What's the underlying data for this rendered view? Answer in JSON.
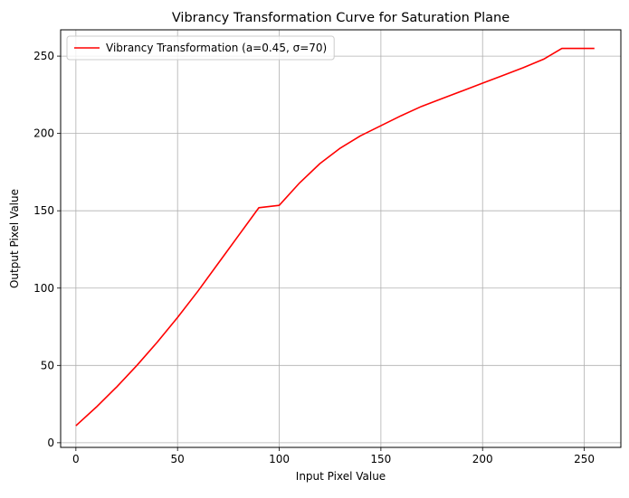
{
  "chart_data": {
    "type": "line",
    "title": "Vibrancy Transformation Curve for Saturation Plane",
    "xlabel": "Input Pixel Value",
    "ylabel": "Output Pixel Value",
    "xlim": [
      -7.5,
      268
    ],
    "ylim": [
      -3,
      267
    ],
    "xticks": [
      0,
      50,
      100,
      150,
      200,
      250
    ],
    "yticks": [
      0,
      50,
      100,
      150,
      200,
      250
    ],
    "grid": true,
    "legend": "upper left",
    "series": [
      {
        "name": "Vibrancy Transformation (a=0.45, σ=70)",
        "color": "#ff0000",
        "x": [
          0,
          10,
          20,
          30,
          40,
          50,
          60,
          70,
          80,
          90,
          100,
          110,
          120,
          130,
          140,
          150,
          160,
          170,
          180,
          190,
          200,
          210,
          220,
          230,
          239,
          247,
          255
        ],
        "y": [
          11,
          23,
          36,
          50,
          65,
          81,
          98,
          116,
          134,
          152,
          153.5,
          168,
          180.5,
          190.5,
          198.5,
          205,
          211.5,
          217.5,
          222.5,
          227.5,
          232.5,
          237.5,
          242.5,
          248,
          255,
          255,
          255
        ]
      }
    ]
  }
}
